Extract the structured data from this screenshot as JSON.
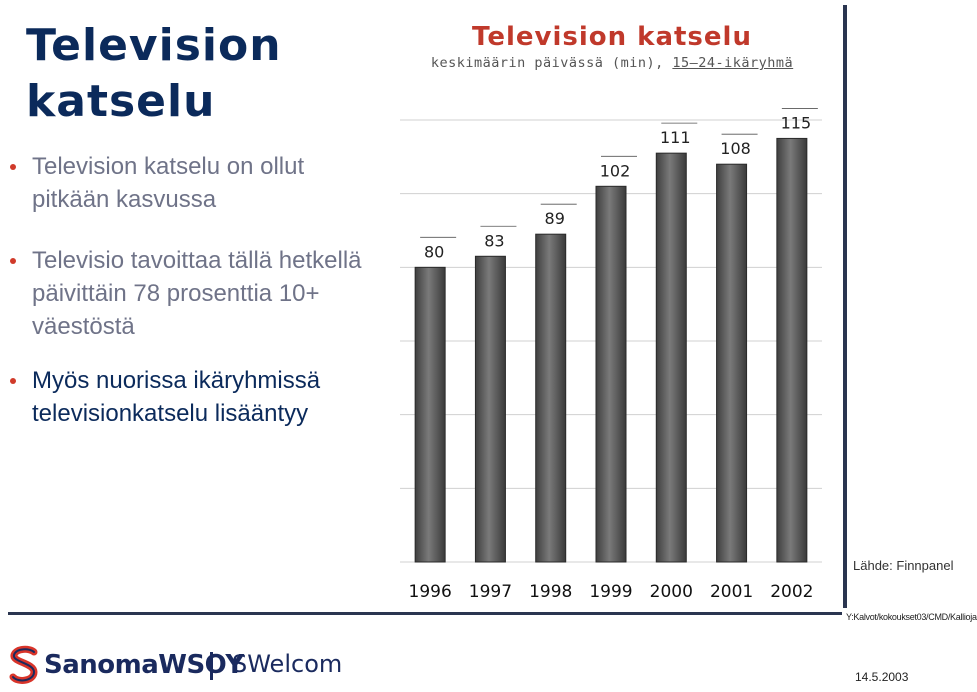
{
  "slide": {
    "title": "Television katselu",
    "bullets": [
      "Television katselu on ollut pitkään kasvussa",
      "Televisio tavoittaa tällä hetkellä päivittäin 78 prosenttia 10+ väestöstä",
      "Myös nuorissa ikäryhmissä televisionkatselu lisääntyy"
    ]
  },
  "chart_data": {
    "type": "bar",
    "title": "Television katselu",
    "subtitle_prefix": "keskimäärin päivässä (min), ",
    "subtitle_underlined": "15–24-ikäryhmä",
    "categories": [
      "1996",
      "1997",
      "1998",
      "1999",
      "2000",
      "2001",
      "2002"
    ],
    "values": [
      80,
      83,
      89,
      102,
      111,
      108,
      115
    ],
    "ylim": [
      0,
      120
    ],
    "grid": true,
    "bar_color": "#7a7a7a",
    "title_color": "#c0392b"
  },
  "footer": {
    "source": "Lähde: Finnpanel",
    "path": "Y:Kalvot/kokoukset03/CMD/Kallioja",
    "logo_text": "SanomaWSOY",
    "unit": "SWelcom",
    "date": "14.5.2003"
  }
}
